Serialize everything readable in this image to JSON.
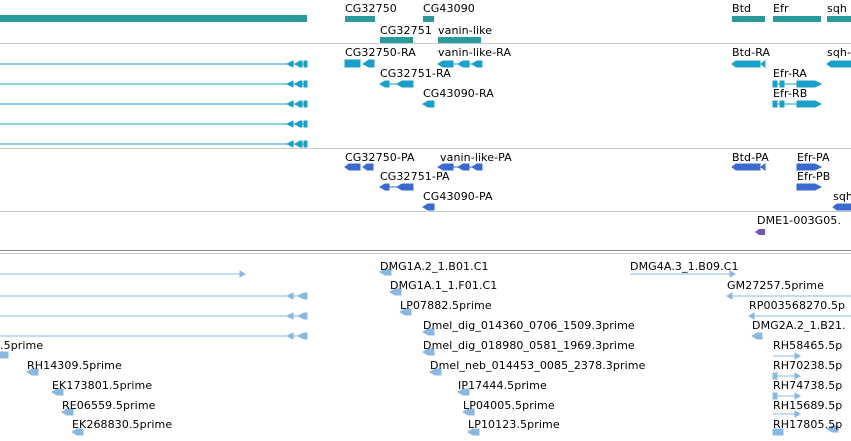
{
  "colors": {
    "gene": "#2a9a9a",
    "transcript": "#1aa0c8",
    "protein": "#3a6ad0",
    "oligo": "#7a58b0",
    "est": "#8ab8e0"
  },
  "tracks": {
    "genes": {
      "labels": [
        "CG32750",
        "CG43090",
        "CG32751",
        "vanin-like",
        "Btd",
        "Efr",
        "sqh"
      ]
    },
    "transcripts": {
      "labels": [
        "CG32750-RA",
        "vanin-like-RA",
        "CG32751-RA",
        "CG43090-RA",
        "Btd-RA",
        "sqh-",
        "Efr-RA",
        "Efr-RB"
      ]
    },
    "proteins": {
      "labels": [
        "CG32750-PA",
        "vanin-like-PA",
        "CG32751-PA",
        "CG43090-PA",
        "Btd-PA",
        "Efr-PA",
        "Efr-PB",
        "sqh"
      ]
    },
    "oligos": {
      "labels": [
        "DME1-003G05."
      ]
    },
    "ests": {
      "labels": [
        "DMG1A.2_1.B01.C1",
        "DMG4A.3_1.B09.C1",
        "DMG1A.1_1.F01.C1",
        "GM27257.5prime",
        "LP07882.5prime",
        "RP003568270.5p",
        "Dmel_dig_014360_0706_1509.3prime",
        "DMG2A.2_1.B21.",
        "Dmel_dig_018980_0581_1969.3prime",
        "RH58465.5p",
        ".5prime",
        "RH14309.5prime",
        "Dmel_neb_014453_0085_2378.3prime",
        "RH70238.5p",
        "EK173801.5prime",
        "IP17444.5prime",
        "RH74738.5p",
        "RE06559.5prime",
        "LP04005.5prime",
        "RH15689.5p",
        "EK268830.5prime",
        "LP10123.5prime",
        "RH17805.5p"
      ]
    }
  }
}
